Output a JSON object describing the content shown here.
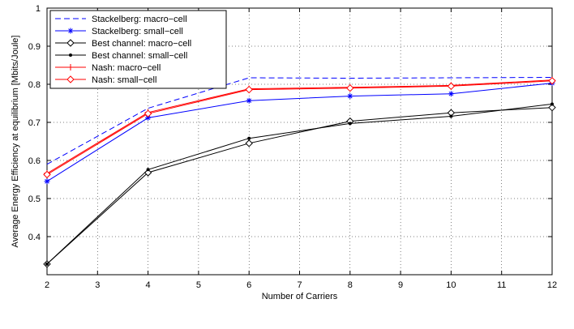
{
  "chart_data": {
    "type": "line",
    "title": "",
    "xlabel": "Number of Carriers",
    "ylabel": "Average Energy Efficiency at equilibrium [Mbits/Joule]",
    "xlim": [
      2,
      12
    ],
    "ylim": [
      0.3,
      1.0
    ],
    "xticks": [
      "2",
      "3",
      "4",
      "5",
      "6",
      "7",
      "8",
      "9",
      "10",
      "11",
      "12"
    ],
    "yticks": [
      "0.4",
      "0.5",
      "0.6",
      "0.7",
      "0.8",
      "0.9",
      "1"
    ],
    "grid": true,
    "legend_position": "top-left",
    "x": [
      2,
      4,
      6,
      8,
      10,
      12
    ],
    "series": [
      {
        "name": "Stackelberg: macro−cell",
        "values": [
          0.59,
          0.737,
          0.817,
          0.816,
          0.817,
          0.818
        ],
        "color": "#0000ff",
        "dash": "dashed",
        "marker": "none"
      },
      {
        "name": "Stackelberg: small−cell",
        "values": [
          0.545,
          0.712,
          0.757,
          0.769,
          0.775,
          0.803
        ],
        "color": "#0000ff",
        "dash": "solid",
        "marker": "asterisk"
      },
      {
        "name": "Best channel: macro−cell",
        "values": [
          0.328,
          0.568,
          0.645,
          0.703,
          0.725,
          0.739
        ],
        "color": "#000000",
        "dash": "solid",
        "marker": "diamond"
      },
      {
        "name": "Best channel: small−cell",
        "values": [
          0.328,
          0.576,
          0.658,
          0.697,
          0.716,
          0.748
        ],
        "color": "#000000",
        "dash": "solid",
        "marker": "dot"
      },
      {
        "name": "Nash: macro−cell",
        "values": [
          0.566,
          0.726,
          0.788,
          0.792,
          0.797,
          0.811
        ],
        "color": "#ff0000",
        "dash": "solid",
        "marker": "plus"
      },
      {
        "name": "Nash: small−cell",
        "values": [
          0.563,
          0.723,
          0.786,
          0.79,
          0.795,
          0.809
        ],
        "color": "#ff0000",
        "dash": "solid",
        "marker": "diamond"
      }
    ]
  }
}
